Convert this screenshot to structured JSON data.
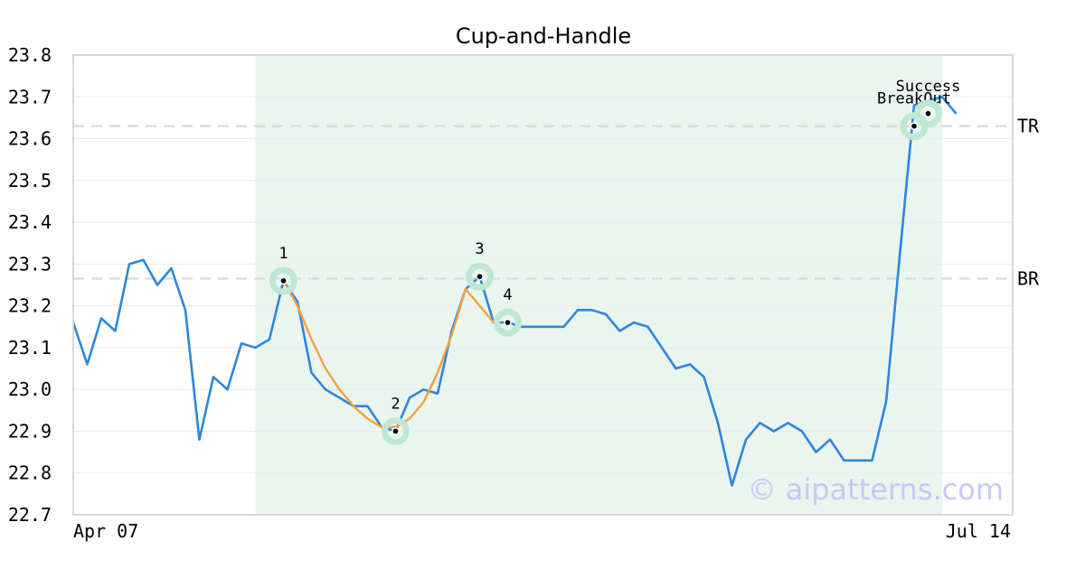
{
  "chart_data": {
    "type": "line",
    "title": "Cup-and-Handle",
    "xlabel": "",
    "ylabel": "",
    "x_tick_labels": [
      "Apr 07",
      "Jul 14"
    ],
    "ylim": [
      22.7,
      23.8
    ],
    "y_ticks": [
      "22.7",
      "22.8",
      "22.9",
      "23.0",
      "23.1",
      "23.2",
      "23.3",
      "23.4",
      "23.5",
      "23.6",
      "23.7",
      "23.8"
    ],
    "grid": true,
    "series": [
      {
        "color": "#2f86dc",
        "values": [
          23.16,
          23.06,
          23.17,
          23.14,
          23.3,
          23.31,
          23.25,
          23.29,
          23.19,
          22.88,
          23.03,
          23.0,
          23.11,
          23.1,
          23.12,
          23.26,
          23.21,
          23.04,
          23.0,
          22.98,
          22.96,
          22.96,
          22.91,
          22.9,
          22.98,
          23.0,
          22.99,
          23.14,
          23.24,
          23.27,
          23.16,
          23.16,
          23.15,
          23.15,
          23.15,
          23.15,
          23.19,
          23.19,
          23.18,
          23.14,
          23.16,
          23.15,
          23.1,
          23.05,
          23.06,
          23.03,
          22.92,
          22.77,
          22.88,
          22.92,
          22.9,
          22.92,
          22.9,
          22.85,
          22.88,
          22.83,
          22.83,
          22.83,
          22.97,
          23.33,
          23.68,
          23.69,
          23.7,
          23.66
        ]
      },
      {
        "color": "#f5a040",
        "start_index": 15,
        "values": [
          23.26,
          23.2,
          23.12,
          23.05,
          23.0,
          22.96,
          22.93,
          22.91,
          22.91,
          22.93,
          22.97,
          23.04,
          23.13,
          23.24,
          23.2,
          23.16
        ]
      }
    ],
    "reference_lines": [
      {
        "label": "TR",
        "value": 23.63
      },
      {
        "label": "BR",
        "value": 23.265
      }
    ],
    "highlight_range": {
      "start_index": 13,
      "end_index": 62,
      "color": "#eaf5f0"
    },
    "points": [
      {
        "label": "1",
        "index": 15,
        "value": 23.26
      },
      {
        "label": "2",
        "index": 23,
        "value": 22.9
      },
      {
        "label": "3",
        "index": 29,
        "value": 23.27
      },
      {
        "label": "4",
        "index": 31,
        "value": 23.16
      }
    ],
    "annotations": [
      {
        "label": "BreakOut",
        "index": 60,
        "value": 23.63
      },
      {
        "label": "Success",
        "index": 61,
        "value": 23.66
      }
    ],
    "marker_ring_color": "#bfe8d4",
    "watermark": "© aipatterns.com"
  }
}
